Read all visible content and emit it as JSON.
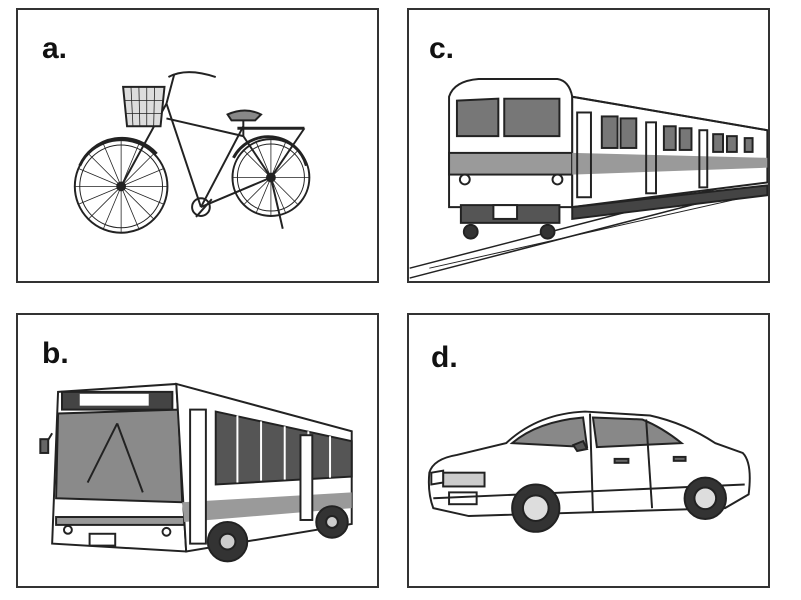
{
  "panels": [
    {
      "id": "a",
      "label": "a.",
      "icon": "bicycle-icon"
    },
    {
      "id": "c",
      "label": "c.",
      "icon": "train-icon"
    },
    {
      "id": "b",
      "label": "b.",
      "icon": "bus-icon"
    },
    {
      "id": "d",
      "label": "d.",
      "icon": "car-icon"
    }
  ],
  "colors": {
    "border": "#333333",
    "ink": "#222222",
    "gray": "#9a9a9a",
    "dark": "#555555"
  }
}
